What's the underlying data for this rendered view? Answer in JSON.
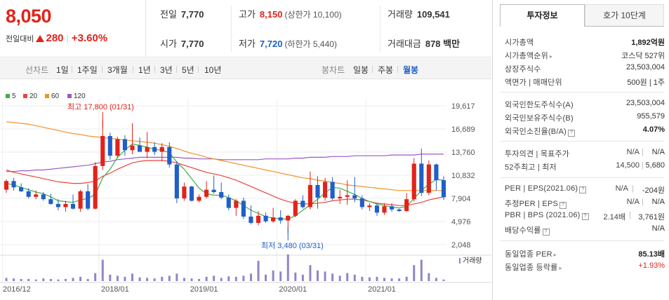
{
  "quote": {
    "price": "8,050",
    "change_label": "전일대비",
    "change_amount": "280",
    "change_pct": "+3.60%"
  },
  "stats": {
    "prev_label": "전일",
    "prev_value": "7,770",
    "high_label": "고가",
    "high_value": "8,150",
    "upper_limit": "(상한가 10,100)",
    "volume_label": "거래량",
    "volume_value": "109,541",
    "open_label": "시가",
    "open_value": "7,770",
    "low_label": "저가",
    "low_value": "7,720",
    "lower_limit": "(하한가 5,440)",
    "amount_label": "거래대금",
    "amount_value": "878 백만"
  },
  "range_bar": {
    "label": "선차트",
    "items": [
      "1일",
      "1주일",
      "3개월",
      "1년",
      "3년",
      "5년",
      "10년"
    ],
    "candle_label": "봉차트",
    "candle_items": [
      "일봉",
      "주봉",
      "월봉"
    ],
    "active_candle": "월봉"
  },
  "colors": {
    "up": "#e2231a",
    "down": "#1f5fc9",
    "ma5": "#3fae49",
    "ma20": "#e8453c",
    "ma60": "#f2922a",
    "ma120": "#9b59c6",
    "volume": "#9384c7"
  },
  "chart_data": {
    "type": "candlestick",
    "legend": [
      "5",
      "20",
      "60",
      "120"
    ],
    "y_ticks": [
      "19,617",
      "16,689",
      "13,760",
      "10,832",
      "7,904",
      "4,976",
      "2,048"
    ],
    "y_range": [
      2048,
      19617
    ],
    "x_ticks": [
      {
        "label": "2016/12",
        "index": 0
      },
      {
        "label": "2018/01",
        "index": 13
      },
      {
        "label": "2019/01",
        "index": 25
      },
      {
        "label": "2020/01",
        "index": 37
      },
      {
        "label": "2021/01",
        "index": 49
      }
    ],
    "high_annotation": "최고 17,800 (01/31)",
    "low_annotation": "최저 3,480 (03/31)",
    "high_index": 13,
    "low_index": 38,
    "candles": [
      [
        9000,
        10300,
        8600,
        10100
      ],
      [
        10100,
        10500,
        8900,
        9300
      ],
      [
        9300,
        9800,
        8700,
        8800
      ],
      [
        8800,
        9200,
        7900,
        8100
      ],
      [
        8100,
        8900,
        7800,
        8400
      ],
      [
        8400,
        8700,
        7600,
        7800
      ],
      [
        7800,
        8500,
        7100,
        7200
      ],
      [
        7200,
        7800,
        6400,
        6800
      ],
      [
        6800,
        7600,
        6200,
        7200
      ],
      [
        7200,
        8400,
        6500,
        6600
      ],
      [
        6600,
        9000,
        6200,
        8800
      ],
      [
        8800,
        9700,
        6400,
        6600
      ],
      [
        6600,
        12500,
        6500,
        12000
      ],
      [
        12000,
        17800,
        11500,
        15800
      ],
      [
        15800,
        16200,
        12800,
        13300
      ],
      [
        13300,
        15700,
        13000,
        15400
      ],
      [
        15400,
        15900,
        13300,
        14000
      ],
      [
        14000,
        17400,
        13500,
        14600
      ],
      [
        14600,
        15600,
        13800,
        13800
      ],
      [
        13800,
        16300,
        13000,
        14400
      ],
      [
        14400,
        15000,
        13400,
        13800
      ],
      [
        13800,
        14900,
        12600,
        14400
      ],
      [
        14400,
        15000,
        11800,
        12200
      ],
      [
        12200,
        12600,
        7300,
        7900
      ],
      [
        7900,
        9900,
        7600,
        9400
      ],
      [
        9400,
        9500,
        7500,
        7600
      ],
      [
        7600,
        8400,
        7400,
        8100
      ],
      [
        8100,
        10100,
        7900,
        9000
      ],
      [
        9000,
        10800,
        8500,
        8700
      ],
      [
        8700,
        9900,
        7800,
        8000
      ],
      [
        8000,
        8400,
        6400,
        6700
      ],
      [
        6700,
        7800,
        5700,
        7600
      ],
      [
        7600,
        8000,
        5300,
        5600
      ],
      [
        5600,
        7000,
        4600,
        4800
      ],
      [
        4800,
        6300,
        4500,
        5700
      ],
      [
        5700,
        6100,
        4800,
        5000
      ],
      [
        5000,
        6700,
        4800,
        5500
      ],
      [
        5500,
        6400,
        4700,
        5100
      ],
      [
        5100,
        5800,
        3480,
        5700
      ],
      [
        5700,
        7800,
        5500,
        7600
      ],
      [
        7600,
        8300,
        6600,
        6800
      ],
      [
        6800,
        11300,
        6500,
        9600
      ],
      [
        9600,
        10700,
        6600,
        8000
      ],
      [
        8000,
        10500,
        7600,
        10000
      ],
      [
        10000,
        10600,
        7700,
        7900
      ],
      [
        7900,
        9000,
        7200,
        8100
      ],
      [
        8100,
        10200,
        7100,
        8300
      ],
      [
        8300,
        10600,
        7400,
        7900
      ],
      [
        7900,
        8300,
        6500,
        6800
      ],
      [
        6800,
        7300,
        6300,
        7000
      ],
      [
        7000,
        7300,
        5700,
        6100
      ],
      [
        6100,
        7300,
        5800,
        6900
      ],
      [
        6900,
        7300,
        6200,
        6500
      ],
      [
        6500,
        6600,
        6200,
        6300
      ],
      [
        6300,
        8600,
        6200,
        7800
      ],
      [
        7800,
        13000,
        7500,
        12300
      ],
      [
        12300,
        14200,
        8200,
        8600
      ],
      [
        8600,
        12700,
        8300,
        12200
      ],
      [
        12200,
        12300,
        8900,
        10200
      ],
      [
        10200,
        10700,
        7700,
        8050
      ]
    ],
    "ma5": [
      9800,
      9600,
      9300,
      9000,
      8700,
      8500,
      8100,
      7600,
      7500,
      7400,
      7700,
      7900,
      8400,
      10500,
      11600,
      13100,
      14000,
      14800,
      14600,
      14400,
      14100,
      14000,
      13700,
      12500,
      11600,
      10400,
      9200,
      8500,
      8300,
      8300,
      8000,
      7600,
      7000,
      6400,
      6000,
      5600,
      5400,
      5300,
      5300,
      5700,
      6400,
      7100,
      7800,
      8600,
      9300,
      9200,
      8800,
      8400,
      7900,
      7500,
      7200,
      7000,
      6800,
      6700,
      6900,
      7900,
      8900,
      9700,
      10300,
      10200
    ],
    "ma20": [
      11500,
      11200,
      11000,
      10800,
      10600,
      10400,
      10200,
      10000,
      9900,
      9800,
      9800,
      9900,
      10100,
      10700,
      11100,
      11600,
      12000,
      12400,
      12600,
      12700,
      12700,
      12700,
      12600,
      12400,
      12100,
      11800,
      11500,
      11200,
      11000,
      10800,
      10500,
      10200,
      9800,
      9400,
      9000,
      8600,
      8200,
      7800,
      7500,
      7300,
      7200,
      7200,
      7300,
      7400,
      7600,
      7700,
      7800,
      7800,
      7700,
      7500,
      7300,
      7200,
      7100,
      7000,
      7000,
      7200,
      7400,
      7700,
      7900,
      8100
    ],
    "ma60": [
      17600,
      17500,
      17400,
      17300,
      17100,
      16900,
      16700,
      16500,
      16300,
      16100,
      16000,
      15800,
      15700,
      15600,
      15500,
      15400,
      15300,
      15200,
      15100,
      15000,
      14900,
      14700,
      14500,
      14200,
      13900,
      13600,
      13400,
      13100,
      12900,
      12700,
      12500,
      12300,
      12100,
      11900,
      11700,
      11500,
      11300,
      11100,
      10900,
      10700,
      10500,
      10400,
      10200,
      10100,
      9900,
      9800,
      9600,
      9500,
      9400,
      9300,
      9200,
      9100,
      9000,
      8900,
      8900,
      8900,
      8900,
      8900,
      8900,
      8900
    ],
    "ma120": [
      11300,
      11300,
      11400,
      11400,
      11500,
      11500,
      11600,
      11700,
      11800,
      11900,
      12000,
      12100,
      12300,
      12500,
      12600,
      12800,
      12900,
      13000,
      13100,
      13100,
      13100,
      13100,
      13100,
      13100,
      13000,
      13000,
      12900,
      12900,
      12900,
      12800,
      12800,
      12800,
      12800,
      12800,
      12800,
      12900,
      12900,
      12900,
      12900,
      13000,
      13000,
      13100,
      13100,
      13100,
      13200,
      13200,
      13200,
      13300,
      13300,
      13300,
      13300,
      13300,
      13400,
      13400,
      13400,
      13400,
      13500,
      13500,
      13500,
      13500
    ],
    "volume_label": "거래량",
    "volume": [
      6,
      5,
      4,
      4,
      3,
      5,
      4,
      3,
      4,
      6,
      8,
      4,
      15,
      40,
      12,
      10,
      8,
      14,
      7,
      6,
      5,
      8,
      10,
      14,
      6,
      5,
      4,
      8,
      10,
      6,
      9,
      8,
      10,
      14,
      38,
      12,
      20,
      18,
      50,
      16,
      12,
      30,
      20,
      18,
      14,
      10,
      15,
      12,
      8,
      7,
      8,
      6,
      5,
      5,
      8,
      30,
      40,
      15,
      6,
      3
    ]
  },
  "sidebar": {
    "tabs": [
      "투자정보",
      "호가 10단계"
    ],
    "rows1": [
      {
        "label": "시가총액",
        "value": "1,892억원"
      },
      {
        "label": "시가총액순위",
        "value": "코스닥 527위"
      },
      {
        "label": "상장주식수",
        "value": "23,503,004"
      },
      {
        "label": "액면가 | 매매단위",
        "value": "500원 | 1주"
      }
    ],
    "rows2": [
      {
        "label": "외국인한도주식수(A)",
        "value": "23,503,004"
      },
      {
        "label": "외국인보유주식수(B)",
        "value": "955,579"
      },
      {
        "label": "외국인소진율(B/A)",
        "value": "4.07%"
      }
    ],
    "rows3": [
      {
        "label": "투자의견 | 목표주가",
        "value1": "N/A",
        "value2": "N/A"
      },
      {
        "label": "52주최고 | 최저",
        "value1": "14,500",
        "value2": "5,680"
      }
    ],
    "rows4": [
      {
        "label": "PER | EPS(2021.06)",
        "value1": "N/A",
        "value2": "-204원"
      },
      {
        "label": "추정PER | EPS",
        "value1": "N/A",
        "value2": "N/A"
      },
      {
        "label": "PBR | BPS (2021.06)",
        "value1": "2.14배",
        "value2": "3,761원"
      },
      {
        "label": "배당수익률",
        "value": "N/A"
      }
    ],
    "rows5": [
      {
        "label": "동일업종 PER",
        "value": "85.13배"
      },
      {
        "label": "동일업종 등락률",
        "value": "+1.93%"
      }
    ]
  }
}
